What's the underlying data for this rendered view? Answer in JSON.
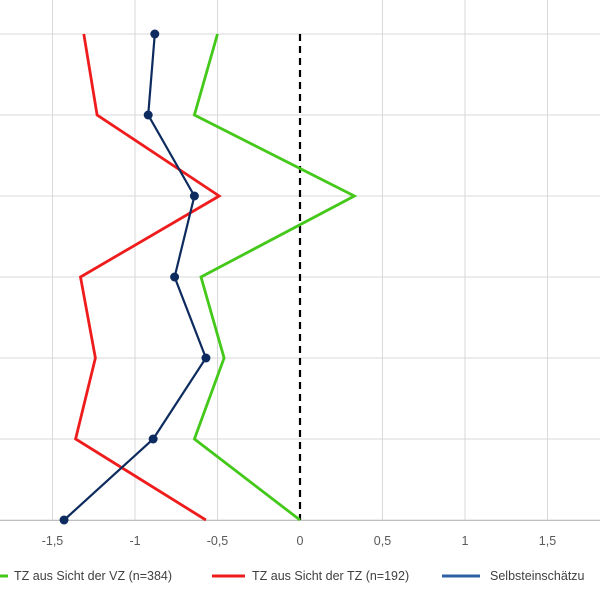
{
  "chart_data": {
    "type": "line",
    "orientation": "horizontal-values-vertical-categories",
    "xlim": [
      -1.8,
      1.8
    ],
    "x_ticks": [
      -1.5,
      -1,
      -0.5,
      0,
      0.5,
      1,
      1.5
    ],
    "x_tick_labels": [
      "-1,5",
      "-1",
      "-0,5",
      "0",
      "0,5",
      "1",
      "1,5"
    ],
    "category_count": 7,
    "grid": true,
    "zero_reference_line": "dashed-black",
    "legend_position": "bottom",
    "series": [
      {
        "name": "TZ aus Sicht der VZ (n=384)",
        "color": "#44c81a",
        "markers": false,
        "values": [
          -0.5,
          -0.64,
          0.33,
          -0.6,
          -0.46,
          -0.64,
          0.0
        ]
      },
      {
        "name": "TZ aus Sicht der TZ (n=192)",
        "color": "#ee1c1c",
        "markers": false,
        "values": [
          -1.31,
          -1.23,
          -0.49,
          -1.33,
          -1.24,
          -1.36,
          -0.57
        ]
      },
      {
        "name": "Selbsteinschätzu",
        "color": "#0d2b5e",
        "legend_color": "#2e5fa6",
        "markers": true,
        "values": [
          -0.88,
          -0.92,
          -0.64,
          -0.76,
          -0.57,
          -0.89,
          -1.43
        ]
      }
    ]
  }
}
